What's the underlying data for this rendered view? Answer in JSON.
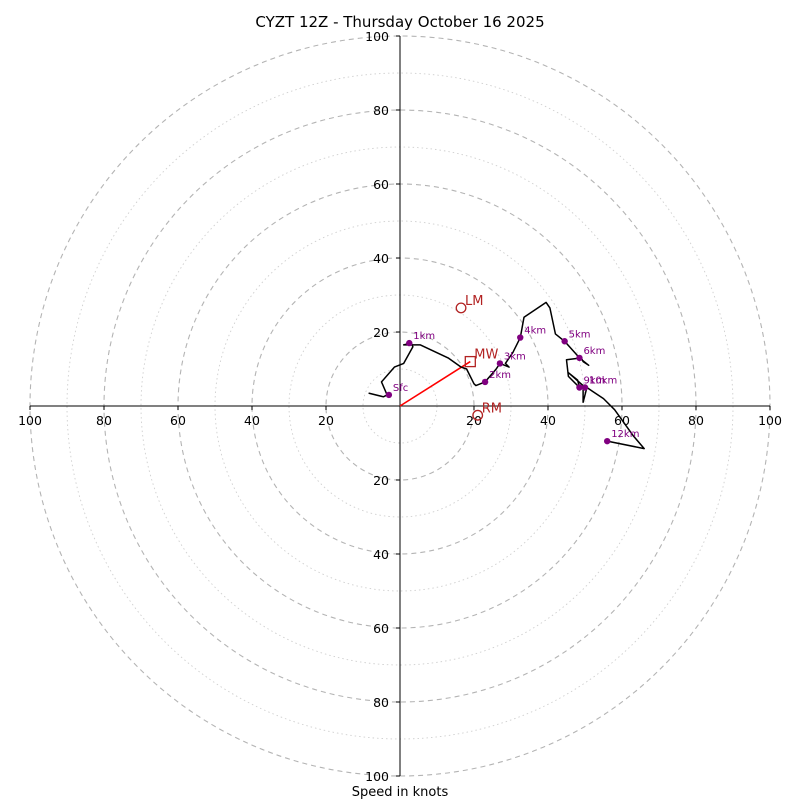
{
  "chart_data": {
    "type": "hodograph",
    "title": "CYZT 12Z - Thursday October 16 2025",
    "xlabel": "Speed in knots",
    "max_speed": 100,
    "ring_step": 20,
    "ticks": [
      "20",
      "40",
      "60",
      "80",
      "100"
    ],
    "trace_color": "#000000",
    "marker_color": "#800080",
    "motion_color": "#b22222",
    "shear_color": "#ff0000",
    "trace": [
      [
        -8.5,
        3.5
      ],
      [
        -4.5,
        2.5
      ],
      [
        -3.5,
        3
      ],
      [
        -5,
        6.5
      ],
      [
        -1.5,
        10.5
      ],
      [
        1,
        11.5
      ],
      [
        3.5,
        16
      ],
      [
        3,
        17
      ],
      [
        1,
        16.5
      ],
      [
        5.5,
        16.5
      ],
      [
        13,
        13
      ],
      [
        16.5,
        10.5
      ],
      [
        18,
        10
      ],
      [
        20,
        6
      ],
      [
        20.5,
        5.5
      ],
      [
        23,
        6.5
      ],
      [
        26,
        10
      ],
      [
        27,
        11.5
      ],
      [
        29.5,
        10.5
      ],
      [
        28.5,
        11.5
      ],
      [
        30.5,
        14.5
      ],
      [
        32.5,
        18.5
      ],
      [
        33.5,
        24
      ],
      [
        39.5,
        28
      ],
      [
        40.5,
        26.5
      ],
      [
        42,
        19.5
      ],
      [
        44.5,
        17.5
      ],
      [
        48.5,
        13
      ],
      [
        51,
        11
      ],
      [
        49.5,
        12
      ],
      [
        49,
        13
      ],
      [
        45,
        12.5
      ],
      [
        45.5,
        8
      ],
      [
        48.5,
        5
      ],
      [
        48,
        7
      ],
      [
        45.5,
        9
      ],
      [
        49.5,
        5.5
      ],
      [
        49.5,
        1
      ],
      [
        50,
        3
      ],
      [
        50.5,
        5
      ],
      [
        52,
        4
      ],
      [
        55,
        2
      ],
      [
        58,
        -1
      ],
      [
        63,
        -8
      ],
      [
        66,
        -11.5
      ],
      [
        56,
        -9.5
      ]
    ],
    "levels": [
      {
        "label": "Sfc",
        "u": -3,
        "v": 3
      },
      {
        "label": "1km",
        "u": 2.5,
        "v": 17
      },
      {
        "label": "2km",
        "u": 23,
        "v": 6.5
      },
      {
        "label": "3km",
        "u": 27,
        "v": 11.5
      },
      {
        "label": "4km",
        "u": 32.5,
        "v": 18.5
      },
      {
        "label": "5km",
        "u": 44.5,
        "v": 17.5
      },
      {
        "label": "6km",
        "u": 48.5,
        "v": 13
      },
      {
        "label": "9km",
        "u": 48.5,
        "v": 5
      },
      {
        "label": "10km",
        "u": 50,
        "v": 5
      },
      {
        "label": "12km",
        "u": 56,
        "v": -9.5
      }
    ],
    "storm_motions": [
      {
        "label": "LM",
        "u": 16.5,
        "v": 26.5,
        "marker": "circle"
      },
      {
        "label": "MW",
        "u": 19,
        "v": 12,
        "marker": "square"
      },
      {
        "label": "RM",
        "u": 21,
        "v": -2.5,
        "marker": "circle"
      }
    ],
    "shear_vector": {
      "from": [
        0,
        0
      ],
      "to": [
        19,
        12
      ]
    }
  }
}
